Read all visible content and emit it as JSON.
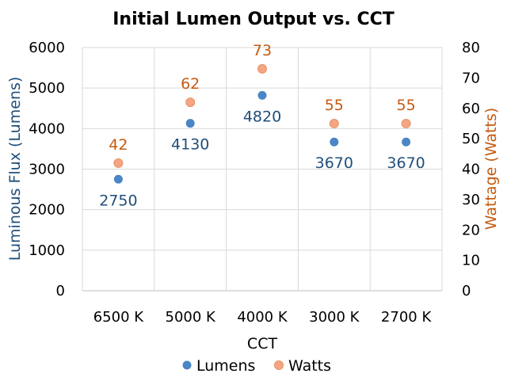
{
  "chart_data": {
    "type": "scatter",
    "title": "Initial Lumen Output vs. CCT",
    "xlabel": "CCT",
    "ylabel_left": "Luminous Flux (Lumens)",
    "ylabel_right": "Wattage (Watts)",
    "categories": [
      "6500 K",
      "5000 K",
      "4000 K",
      "3000 K",
      "2700 K"
    ],
    "left_axis": {
      "min": 0,
      "max": 6000,
      "step": 1000,
      "ticks": [
        "0",
        "1000",
        "2000",
        "3000",
        "4000",
        "5000",
        "6000"
      ]
    },
    "right_axis": {
      "min": 0,
      "max": 80,
      "step": 10,
      "ticks": [
        "0",
        "10",
        "20",
        "30",
        "40",
        "50",
        "60",
        "70",
        "80"
      ]
    },
    "grid": true,
    "legend_position": "bottom",
    "series": [
      {
        "name": "Lumens",
        "axis": "left",
        "color": "#4a86c5",
        "values": [
          2750,
          4130,
          4820,
          3670,
          3670
        ],
        "labels": [
          "2750",
          "4130",
          "4820",
          "3670",
          "3670"
        ]
      },
      {
        "name": "Watts",
        "axis": "right",
        "color": "#f4a583",
        "values": [
          42,
          62,
          73,
          55,
          55
        ],
        "labels": [
          "42",
          "62",
          "73",
          "55",
          "55"
        ]
      }
    ],
    "label_colors": {
      "left": "#1f4e79",
      "right": "#c55a11"
    }
  }
}
